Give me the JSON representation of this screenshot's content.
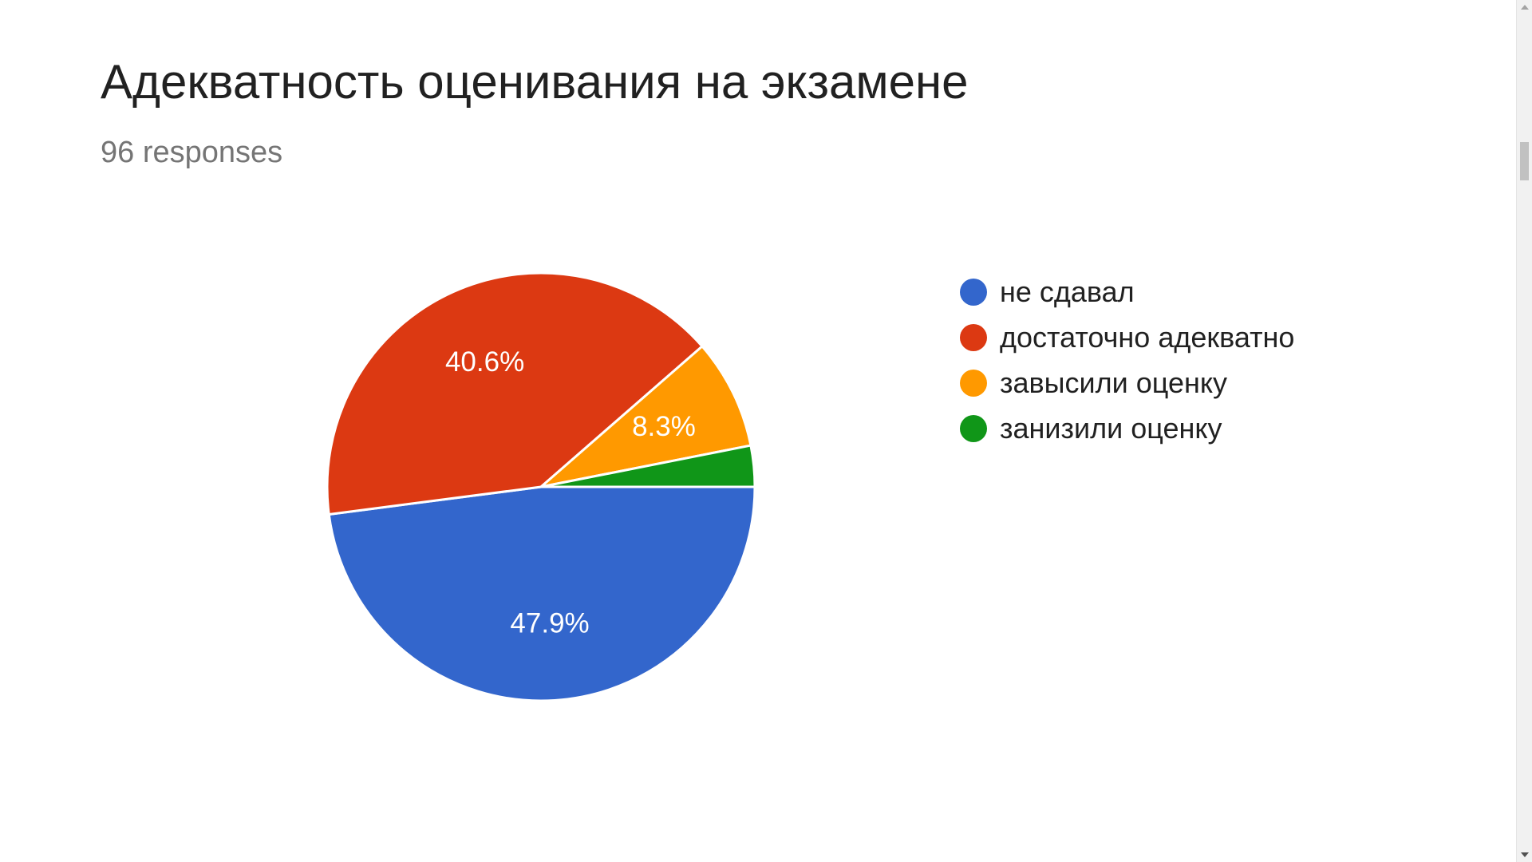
{
  "header": {
    "title": "Адекватность оценивания на экзамене",
    "responses": "96 responses"
  },
  "chart_data": {
    "type": "pie",
    "title": "Адекватность оценивания на экзамене",
    "total_responses": 96,
    "legend_position": "right",
    "slices": [
      {
        "label": "не сдавал",
        "value": 47.9,
        "data_label": "47.9%",
        "color": "#3366cc"
      },
      {
        "label": "достаточно адекватно",
        "value": 40.6,
        "data_label": "40.6%",
        "color": "#dc3912"
      },
      {
        "label": "завысили оценку",
        "value": 8.3,
        "data_label": "8.3%",
        "color": "#ff9900"
      },
      {
        "label": "занизили оценку",
        "value": 3.1,
        "data_label": "",
        "color": "#109618"
      }
    ]
  }
}
